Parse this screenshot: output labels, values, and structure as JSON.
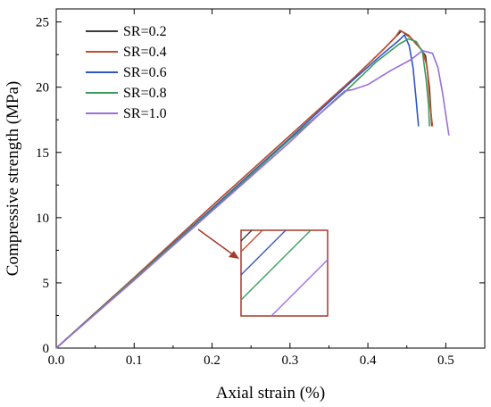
{
  "chart_data": {
    "type": "line",
    "xlabel": "Axial strain (%)",
    "ylabel": "Compressive strength (MPa)",
    "xlim": [
      0,
      0.55
    ],
    "ylim": [
      0,
      26
    ],
    "xticks": [
      "0.0",
      "0.1",
      "0.2",
      "0.3",
      "0.4",
      "0.5"
    ],
    "yticks": [
      "0",
      "5",
      "10",
      "15",
      "20",
      "25"
    ],
    "legend_position": "top-left",
    "series": [
      {
        "name": "SR=0.2",
        "color": "#3a3a3a",
        "points": [
          [
            0,
            0
          ],
          [
            0.1,
            5.4
          ],
          [
            0.2,
            10.9
          ],
          [
            0.3,
            16.3
          ],
          [
            0.38,
            20.6
          ],
          [
            0.42,
            22.9
          ],
          [
            0.438,
            24.0
          ],
          [
            0.443,
            24.3
          ],
          [
            0.455,
            23.8
          ],
          [
            0.466,
            23.1
          ],
          [
            0.474,
            22.4
          ],
          [
            0.479,
            20.0
          ],
          [
            0.482,
            17.0
          ]
        ]
      },
      {
        "name": "SR=0.4",
        "color": "#c0502e",
        "points": [
          [
            0,
            0
          ],
          [
            0.1,
            5.4
          ],
          [
            0.2,
            10.9
          ],
          [
            0.3,
            16.3
          ],
          [
            0.38,
            20.6
          ],
          [
            0.42,
            22.9
          ],
          [
            0.436,
            23.9
          ],
          [
            0.441,
            24.35
          ],
          [
            0.452,
            24.0
          ],
          [
            0.462,
            23.3
          ],
          [
            0.47,
            22.8
          ],
          [
            0.476,
            21.6
          ],
          [
            0.48,
            18.5
          ],
          [
            0.483,
            17.0
          ]
        ]
      },
      {
        "name": "SR=0.6",
        "color": "#2f55c8",
        "points": [
          [
            0,
            0
          ],
          [
            0.1,
            5.3
          ],
          [
            0.2,
            10.7
          ],
          [
            0.3,
            16.1
          ],
          [
            0.38,
            20.5
          ],
          [
            0.42,
            22.6
          ],
          [
            0.44,
            23.6
          ],
          [
            0.447,
            24.0
          ],
          [
            0.453,
            23.2
          ],
          [
            0.458,
            21.5
          ],
          [
            0.462,
            19.0
          ],
          [
            0.465,
            17.0
          ]
        ]
      },
      {
        "name": "SR=0.8",
        "color": "#3e9a5a",
        "points": [
          [
            0,
            0
          ],
          [
            0.1,
            5.3
          ],
          [
            0.2,
            10.6
          ],
          [
            0.3,
            16.0
          ],
          [
            0.37,
            19.6
          ],
          [
            0.41,
            21.9
          ],
          [
            0.44,
            23.3
          ],
          [
            0.452,
            23.7
          ],
          [
            0.462,
            23.5
          ],
          [
            0.47,
            22.7
          ],
          [
            0.475,
            20.5
          ],
          [
            0.478,
            18.5
          ],
          [
            0.479,
            17.0
          ]
        ]
      },
      {
        "name": "SR=1.0",
        "color": "#9b6fd6",
        "points": [
          [
            0,
            0
          ],
          [
            0.1,
            5.2
          ],
          [
            0.2,
            10.5
          ],
          [
            0.3,
            15.8
          ],
          [
            0.355,
            18.9
          ],
          [
            0.37,
            19.7
          ],
          [
            0.38,
            19.8
          ],
          [
            0.4,
            20.2
          ],
          [
            0.43,
            21.3
          ],
          [
            0.455,
            22.1
          ],
          [
            0.47,
            22.8
          ],
          [
            0.483,
            22.6
          ],
          [
            0.49,
            21.5
          ],
          [
            0.496,
            19.5
          ],
          [
            0.501,
            17.5
          ],
          [
            0.504,
            16.3
          ]
        ]
      }
    ]
  }
}
